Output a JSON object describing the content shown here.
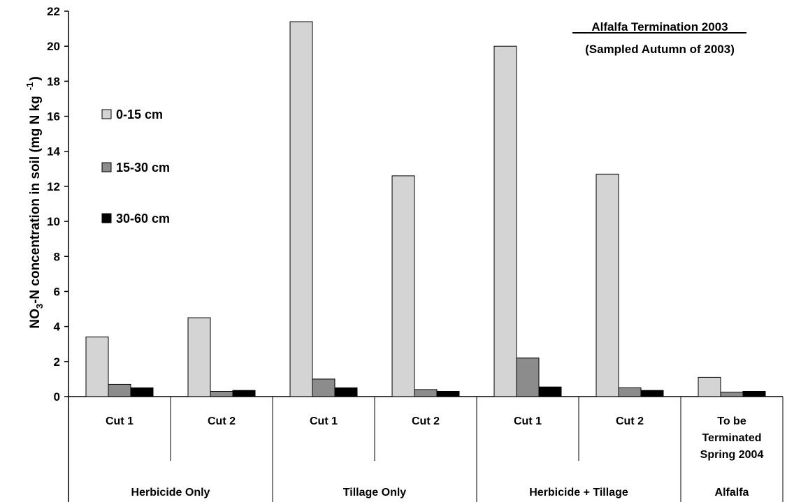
{
  "chart_data": {
    "type": "bar",
    "title": "Alfalfa Termination 2003",
    "subtitle": "(Sampled Autumn of 2003)",
    "ylabel": {
      "part1": "NO",
      "sub": "3",
      "part2": "-N concentration in soil (mg N kg",
      "sup": "-1",
      "part3": ")"
    },
    "xlabel": "",
    "ylim": [
      0,
      22
    ],
    "yticks": [
      0,
      2,
      4,
      6,
      8,
      10,
      12,
      14,
      16,
      18,
      20,
      22
    ],
    "grid": false,
    "legend_position": "left, upper",
    "categories": [
      [
        "Cut 1"
      ],
      [
        "Cut 2"
      ],
      [
        "Cut 1"
      ],
      [
        "Cut 2"
      ],
      [
        "Cut 1"
      ],
      [
        "Cut 2"
      ],
      [
        "To be",
        "Terminated",
        "Spring 2004"
      ]
    ],
    "groups": [
      {
        "label": "Herbicide Only",
        "span": 2
      },
      {
        "label": "Tillage Only",
        "span": 2
      },
      {
        "label": "Herbicide + Tillage",
        "span": 2
      },
      {
        "label": "Alfalfa",
        "span": 1
      }
    ],
    "series": [
      {
        "name": "0-15 cm",
        "color": "#d4d4d4",
        "values": [
          3.4,
          4.5,
          21.4,
          12.6,
          20.0,
          12.7,
          1.1
        ]
      },
      {
        "name": "15-30 cm",
        "color": "#8c8c8c",
        "values": [
          0.7,
          0.3,
          1.0,
          0.4,
          2.2,
          0.5,
          0.25
        ]
      },
      {
        "name": "30-60 cm",
        "color": "#000000",
        "values": [
          0.5,
          0.35,
          0.5,
          0.3,
          0.55,
          0.35,
          0.3
        ]
      }
    ]
  }
}
